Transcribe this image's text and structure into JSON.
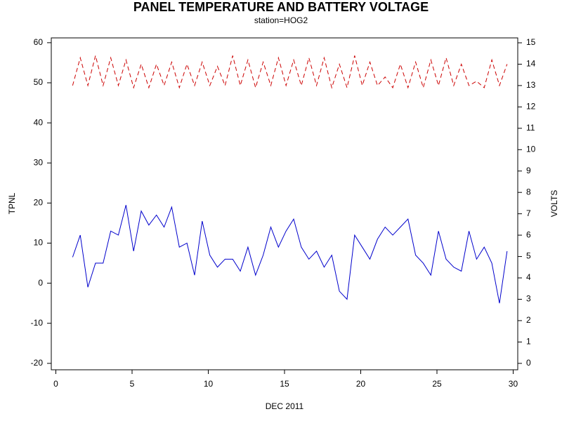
{
  "chart_data": {
    "type": "line",
    "title": "PANEL TEMPERATURE AND BATTERY VOLTAGE",
    "subtitle": "station=HOG2",
    "x_label": "DEC 2011",
    "y_label": "TPNL",
    "y2_label": "VOLTS",
    "xlim": [
      -0.3,
      30.3
    ],
    "xticks": [
      0,
      5,
      10,
      15,
      20,
      25,
      30
    ],
    "ylim": [
      -21.6,
      61.2
    ],
    "yticks": [
      -20,
      -10,
      0,
      10,
      20,
      30,
      40,
      50,
      60
    ],
    "y2lim": [
      -0.3,
      15.23
    ],
    "y2ticks": [
      0,
      1,
      2,
      3,
      4,
      5,
      6,
      7,
      8,
      9,
      10,
      11,
      12,
      13,
      14,
      15
    ],
    "x": [
      1.1,
      1.6,
      2.1,
      2.6,
      3.1,
      3.6,
      4.1,
      4.6,
      5.1,
      5.6,
      6.1,
      6.6,
      7.1,
      7.6,
      8.1,
      8.6,
      9.1,
      9.6,
      10.1,
      10.6,
      11.1,
      11.6,
      12.1,
      12.6,
      13.1,
      13.6,
      14.1,
      14.6,
      15.1,
      15.6,
      16.1,
      16.6,
      17.1,
      17.6,
      18.1,
      18.6,
      19.1,
      19.6,
      20.1,
      20.6,
      21.1,
      21.6,
      22.1,
      22.6,
      23.1,
      23.6,
      24.1,
      24.6,
      25.1,
      25.6,
      26.1,
      26.6,
      27.1,
      27.6,
      28.1,
      28.6,
      29.1,
      29.6
    ],
    "series": [
      {
        "name": "TPNL",
        "color": "#0000cc",
        "dash": false,
        "values": [
          6.5,
          12,
          -1,
          5,
          5,
          13,
          12,
          19.5,
          8,
          18,
          14.5,
          17,
          14,
          19,
          9,
          10,
          2,
          15.5,
          7,
          4,
          6,
          6,
          3,
          9,
          2,
          7,
          14,
          9,
          13,
          16,
          9,
          6,
          8,
          4,
          7,
          -2,
          -4,
          12,
          9,
          6,
          11,
          14,
          12,
          14,
          16,
          7,
          5,
          2,
          13,
          6,
          4,
          3,
          13,
          6,
          9,
          5,
          -5,
          8
        ]
      },
      {
        "name": "VOLTS",
        "color": "#cc0000",
        "dash": true,
        "axis": "y2",
        "values": [
          13.0,
          14.3,
          13.0,
          14.4,
          13.0,
          14.3,
          13.0,
          14.2,
          12.9,
          14.0,
          12.9,
          14.0,
          13.0,
          14.1,
          12.9,
          14.0,
          13.0,
          14.1,
          13.0,
          13.9,
          13.0,
          14.4,
          13.0,
          14.2,
          12.9,
          14.1,
          13.0,
          14.3,
          13.0,
          14.2,
          13.0,
          14.3,
          13.0,
          14.3,
          12.9,
          14.0,
          12.9,
          14.4,
          13.0,
          14.1,
          13.0,
          13.4,
          12.9,
          14.0,
          12.9,
          14.1,
          12.9,
          14.2,
          13.0,
          14.3,
          13.0,
          14.0,
          13.0,
          13.2,
          12.9,
          14.2,
          13.0,
          14.0
        ]
      }
    ]
  }
}
